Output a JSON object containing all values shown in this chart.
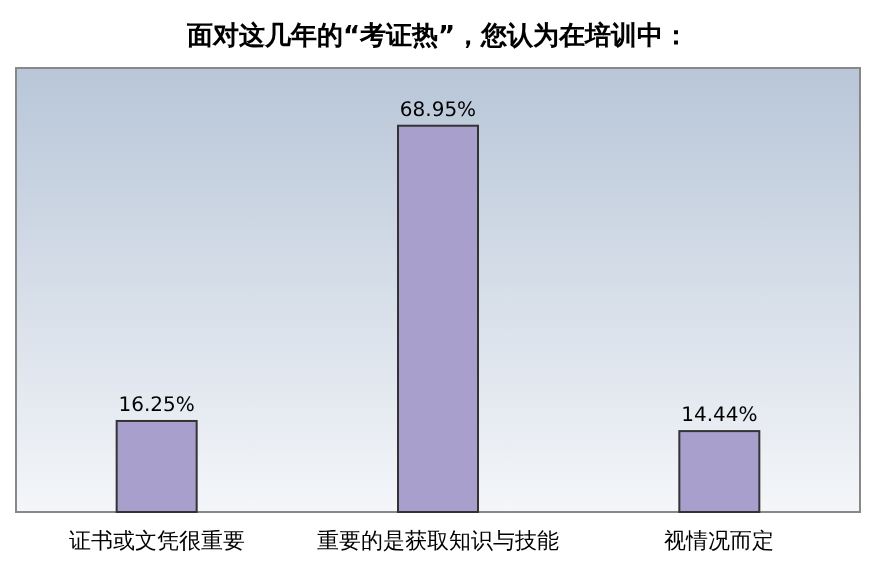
{
  "chart_data": {
    "type": "bar",
    "title": "面对这几年的“考证热”，您认为在培训中：",
    "categories": [
      "证书或文凭很重要",
      "重要的是获取知识与技能",
      "视情况而定"
    ],
    "values": [
      16.25,
      68.95,
      14.44
    ],
    "value_labels": [
      "16.25%",
      "68.95%",
      "14.44%"
    ],
    "color": "#a99fcc",
    "grid": false
  }
}
